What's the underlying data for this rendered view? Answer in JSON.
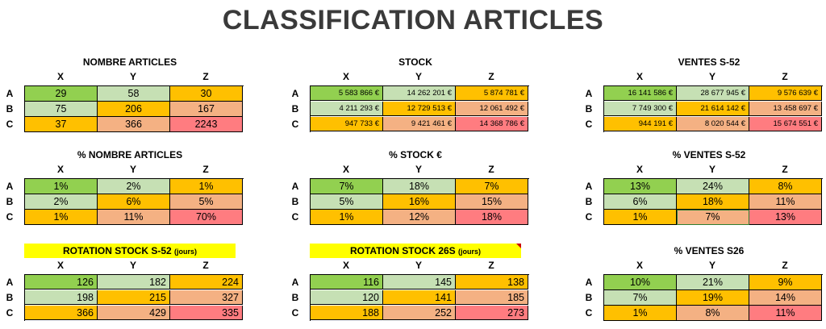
{
  "title": "CLASSIFICATION ARTICLES",
  "cols": [
    "X",
    "Y",
    "Z"
  ],
  "rows": [
    "A",
    "B",
    "C"
  ],
  "blocks": {
    "nb": {
      "title": "NOMBRE ARTICLES",
      "values": [
        [
          "29",
          "58",
          "30"
        ],
        [
          "75",
          "206",
          "167"
        ],
        [
          "37",
          "366",
          "2243"
        ]
      ]
    },
    "stock": {
      "title": "STOCK",
      "values": [
        [
          "5 583 866 €",
          "14 262 201 €",
          "5 874 781 €"
        ],
        [
          "4 211 293 €",
          "12 729 513 €",
          "12 061 492 €"
        ],
        [
          "947 733 €",
          "9 421 461 €",
          "14 368 786 €"
        ]
      ]
    },
    "ventes": {
      "title": "VENTES S-52",
      "values": [
        [
          "16 141 586 €",
          "28 677 945 €",
          "9 576 639 €"
        ],
        [
          "7 749 300 €",
          "21 614 142 €",
          "13 458 697 €"
        ],
        [
          "944 191 €",
          "8 020 544 €",
          "15 674 551 €"
        ]
      ]
    },
    "pnb": {
      "title": "% NOMBRE ARTICLES",
      "values": [
        [
          "1%",
          "2%",
          "1%"
        ],
        [
          "2%",
          "6%",
          "5%"
        ],
        [
          "1%",
          "11%",
          "70%"
        ]
      ]
    },
    "pstock": {
      "title": "% STOCK €",
      "values": [
        [
          "7%",
          "18%",
          "7%"
        ],
        [
          "5%",
          "16%",
          "15%"
        ],
        [
          "1%",
          "12%",
          "18%"
        ]
      ]
    },
    "pventes": {
      "title": "% VENTES  S-52",
      "values": [
        [
          "13%",
          "24%",
          "8%"
        ],
        [
          "6%",
          "18%",
          "11%"
        ],
        [
          "1%",
          "7%",
          "13%"
        ]
      ]
    },
    "rot52": {
      "title": "ROTATION STOCK S-52",
      "title_small": "(jours)",
      "values": [
        [
          "126",
          "182",
          "224"
        ],
        [
          "198",
          "215",
          "327"
        ],
        [
          "366",
          "429",
          "335"
        ]
      ]
    },
    "rot26": {
      "title": "ROTATION STOCK 26S",
      "title_small": "(jours)",
      "values": [
        [
          "116",
          "145",
          "138"
        ],
        [
          "120",
          "141",
          "185"
        ],
        [
          "188",
          "252",
          "273"
        ]
      ]
    },
    "pv26": {
      "title": "% VENTES S26",
      "values": [
        [
          "10%",
          "21%",
          "9%"
        ],
        [
          "7%",
          "19%",
          "14%"
        ],
        [
          "1%",
          "8%",
          "11%"
        ]
      ]
    }
  },
  "colors": {
    "green": "#92d050",
    "light_green": "#c6e0b4",
    "orange": "#ffc000",
    "peach": "#f4b183",
    "red": "#ff7c80",
    "highlight": "#ffff00"
  }
}
